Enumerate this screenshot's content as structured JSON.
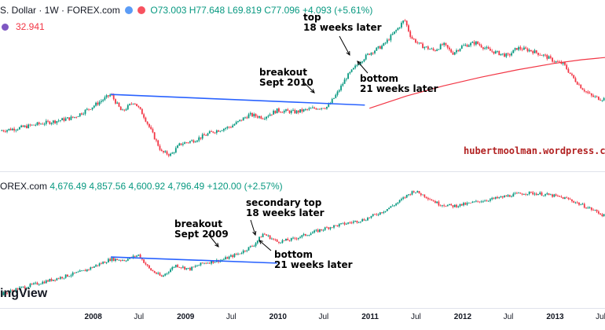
{
  "header_top": {
    "symbol": "S. Dollar · 1W · FOREX.com",
    "open": "O73.003",
    "high": "H77.648",
    "low": "L69.819",
    "close": "C77.096",
    "change": "+4.093 (+5.61%)"
  },
  "indicator": {
    "value": "32.941"
  },
  "header_bottom": {
    "symbol": "OREX.com",
    "ohlc": "4,676.49  4,857.56  4,600.92  4,796.49  +120.00 (+2.57%)"
  },
  "watermark": "ingView",
  "site_label": "hubertmoolman.wordpress.com",
  "annotations": {
    "top_a": "top",
    "top_b": "18 weeks later",
    "breakout_top_a": "breakout",
    "breakout_top_b": "Sept 2010",
    "bottom_top_a": "bottom",
    "bottom_top_b": "21 weeks later",
    "breakout_bot_a": "breakout",
    "breakout_bot_b": "Sept 2009",
    "secondary_a": "secondary top",
    "secondary_b": "18 weeks later",
    "bottom_bot_a": "bottom",
    "bottom_bot_b": "21 weeks later"
  },
  "colors": {
    "up": "#089981",
    "down": "#f23645",
    "trendline": "#2962ff",
    "ma": "#f23645",
    "text": "#131722"
  },
  "chart_data": [
    {
      "type": "candlestick",
      "series": [
        {
          "name": "S. Dollar",
          "role": "close path (weekly, approx.)",
          "x": [
            2007.0,
            2007.2,
            2007.4,
            2007.6,
            2007.8,
            2008.0,
            2008.2,
            2008.32,
            2008.45,
            2008.55,
            2008.65,
            2008.75,
            2008.85,
            2008.95,
            2009.1,
            2009.3,
            2009.5,
            2009.7,
            2009.85,
            2010.0,
            2010.2,
            2010.4,
            2010.55,
            2010.65,
            2010.75,
            2010.9,
            2011.0,
            2011.15,
            2011.3,
            2011.38,
            2011.45,
            2011.55,
            2011.7,
            2011.8,
            2011.9,
            2012.0,
            2012.15,
            2012.3,
            2012.5,
            2012.6,
            2012.75,
            2012.9,
            2013.0,
            2013.1,
            2013.2,
            2013.3,
            2013.4,
            2013.5
          ],
          "y": [
            14.0,
            14.5,
            15.2,
            15.8,
            16.5,
            18.5,
            20.8,
            17.5,
            19.5,
            17.0,
            13.5,
            10.0,
            9.5,
            11.5,
            12.2,
            13.8,
            14.8,
            17.0,
            16.5,
            17.8,
            17.5,
            18.2,
            18.5,
            21.0,
            24.0,
            27.0,
            28.5,
            30.0,
            33.0,
            34.8,
            31.5,
            30.0,
            29.0,
            30.2,
            28.5,
            29.8,
            30.5,
            29.0,
            28.0,
            29.5,
            29.0,
            28.0,
            27.0,
            26.5,
            24.0,
            22.0,
            20.5,
            20.0
          ]
        }
      ],
      "trendline": {
        "x": [
          2008.2,
          2010.95
        ],
        "y": [
          20.8,
          18.8
        ]
      },
      "moving_average": {
        "x": [
          2011.0,
          2011.4,
          2011.8,
          2012.2,
          2012.6,
          2013.0,
          2013.3,
          2013.6
        ],
        "y": [
          18.2,
          20.5,
          22.4,
          24.0,
          25.4,
          26.6,
          27.3,
          27.8
        ]
      },
      "ylim": [
        7.0,
        37.0
      ],
      "xlim": [
        2007.0,
        2013.55
      ]
    },
    {
      "type": "candlestick",
      "series": [
        {
          "name": "OREX.com",
          "role": "close path (weekly, approx.)",
          "x": [
            2007.0,
            2007.2,
            2007.45,
            2007.7,
            2007.9,
            2008.05,
            2008.2,
            2008.35,
            2008.5,
            2008.62,
            2008.75,
            2008.9,
            2009.05,
            2009.2,
            2009.4,
            2009.6,
            2009.75,
            2009.85,
            2010.0,
            2010.15,
            2010.35,
            2010.55,
            2010.75,
            2010.95,
            2011.15,
            2011.3,
            2011.4,
            2011.48,
            2011.6,
            2011.75,
            2011.9,
            2012.05,
            2012.2,
            2012.4,
            2012.55,
            2012.7,
            2012.85,
            2013.0,
            2013.15,
            2013.3,
            2013.45,
            2013.55
          ],
          "y": [
            11.0,
            12.2,
            13.4,
            14.6,
            15.6,
            16.8,
            18.0,
            17.8,
            18.8,
            16.0,
            14.5,
            16.8,
            16.0,
            17.2,
            17.8,
            19.2,
            20.8,
            23.0,
            21.4,
            21.8,
            23.0,
            24.2,
            25.0,
            25.8,
            27.4,
            29.0,
            30.4,
            31.4,
            30.4,
            28.8,
            28.4,
            28.8,
            29.4,
            30.0,
            30.6,
            31.0,
            30.8,
            30.4,
            29.8,
            28.6,
            27.4,
            26.4
          ]
        }
      ],
      "trendline": {
        "x": [
          2008.2,
          2010.0
        ],
        "y": [
          18.4,
          17.2
        ]
      },
      "ylim": [
        9.0,
        34.0
      ],
      "xlim": [
        2007.0,
        2013.55
      ]
    }
  ],
  "xaxis": {
    "ticks": [
      {
        "label": "2008",
        "x": 2008.0,
        "major": true
      },
      {
        "label": "Jul",
        "x": 2008.5,
        "major": false
      },
      {
        "label": "2009",
        "x": 2009.0,
        "major": true
      },
      {
        "label": "Jul",
        "x": 2009.5,
        "major": false
      },
      {
        "label": "2010",
        "x": 2010.0,
        "major": true
      },
      {
        "label": "Jul",
        "x": 2010.5,
        "major": false
      },
      {
        "label": "2011",
        "x": 2011.0,
        "major": true
      },
      {
        "label": "Jul",
        "x": 2011.5,
        "major": false
      },
      {
        "label": "2012",
        "x": 2012.0,
        "major": true
      },
      {
        "label": "Jul",
        "x": 2012.5,
        "major": false
      },
      {
        "label": "2013",
        "x": 2013.0,
        "major": true
      },
      {
        "label": "Jul",
        "x": 2013.5,
        "major": false
      }
    ]
  }
}
